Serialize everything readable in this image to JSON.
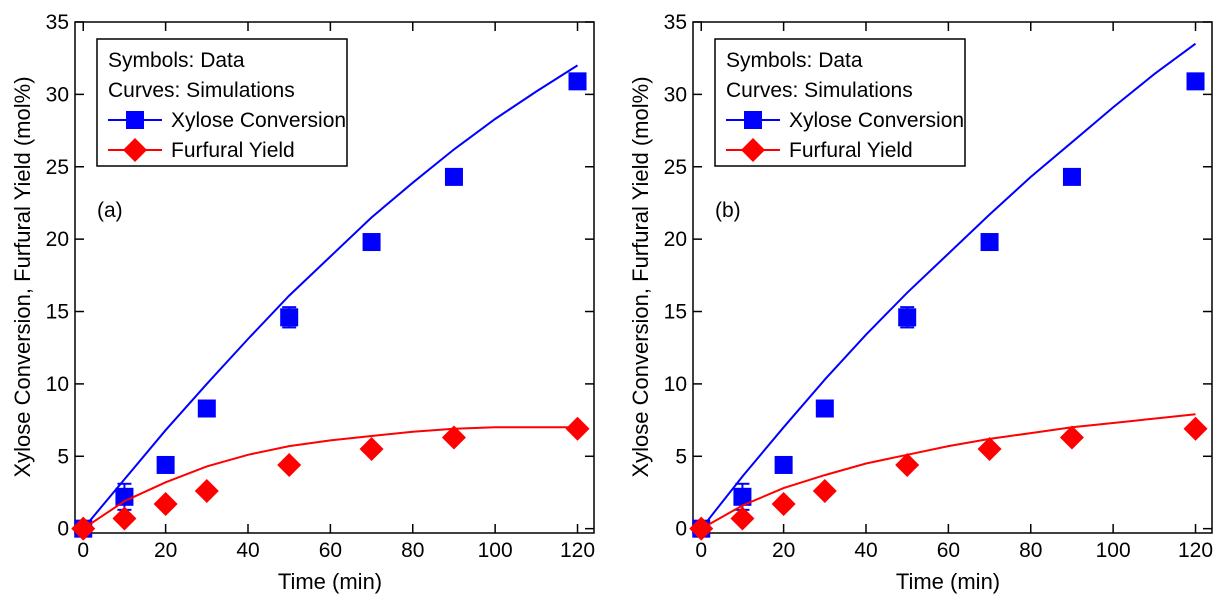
{
  "chart_data": [
    {
      "type": "line",
      "panel_label": "(a)",
      "xlabel": "Time (min)",
      "ylabel": "Xylose Conversion, Furfural Yield (mol%)",
      "xlim": [
        -2,
        124
      ],
      "ylim": [
        -0.3,
        35
      ],
      "x_ticks": [
        0,
        20,
        40,
        60,
        80,
        100,
        120
      ],
      "y_ticks": [
        0,
        5,
        10,
        15,
        20,
        25,
        30,
        35
      ],
      "legend_notes": [
        "Symbols: Data",
        "Curves: Simulations"
      ],
      "legend_position": "top-left",
      "series": [
        {
          "name": "Xylose Conversion",
          "color": "#0000ff",
          "marker": "square",
          "data_x": [
            0,
            10,
            20,
            30,
            50,
            70,
            90,
            120
          ],
          "data_y": [
            0,
            2.2,
            4.4,
            8.3,
            14.6,
            19.8,
            24.3,
            30.9
          ],
          "error": [
            0,
            0.9,
            0,
            0,
            0.7,
            0,
            0,
            0
          ],
          "curve_x": [
            0,
            10,
            20,
            30,
            40,
            50,
            60,
            70,
            80,
            90,
            100,
            110,
            120
          ],
          "curve_y": [
            0,
            3.4,
            6.8,
            10.0,
            13.1,
            16.1,
            18.8,
            21.5,
            23.9,
            26.2,
            28.3,
            30.2,
            32.0
          ]
        },
        {
          "name": "Furfural Yield",
          "color": "#ff0000",
          "marker": "diamond",
          "data_x": [
            0,
            10,
            20,
            30,
            50,
            70,
            90,
            120
          ],
          "data_y": [
            0,
            0.7,
            1.7,
            2.6,
            4.4,
            5.5,
            6.3,
            6.9
          ],
          "error": [
            0,
            0,
            0,
            0,
            0,
            0,
            0,
            0
          ],
          "curve_x": [
            0,
            10,
            20,
            30,
            40,
            50,
            60,
            70,
            80,
            90,
            100,
            110,
            120
          ],
          "curve_y": [
            0,
            1.9,
            3.2,
            4.3,
            5.1,
            5.7,
            6.1,
            6.4,
            6.7,
            6.9,
            7.0,
            7.0,
            7.0
          ]
        }
      ]
    },
    {
      "type": "line",
      "panel_label": "(b)",
      "xlabel": "Time (min)",
      "ylabel": "Xylose Conversion, Furfural Yield (mol%)",
      "xlim": [
        -2,
        124
      ],
      "ylim": [
        -0.3,
        35
      ],
      "x_ticks": [
        0,
        20,
        40,
        60,
        80,
        100,
        120
      ],
      "y_ticks": [
        0,
        5,
        10,
        15,
        20,
        25,
        30,
        35
      ],
      "legend_notes": [
        "Symbols: Data",
        "Curves: Simulations"
      ],
      "legend_position": "top-left",
      "series": [
        {
          "name": "Xylose Conversion",
          "color": "#0000ff",
          "marker": "square",
          "data_x": [
            0,
            10,
            20,
            30,
            50,
            70,
            90,
            120
          ],
          "data_y": [
            0,
            2.2,
            4.4,
            8.3,
            14.6,
            19.8,
            24.3,
            30.9
          ],
          "error": [
            0,
            0.9,
            0,
            0,
            0.7,
            0,
            0,
            0
          ],
          "curve_x": [
            0,
            10,
            20,
            30,
            40,
            50,
            60,
            70,
            80,
            90,
            100,
            110,
            120
          ],
          "curve_y": [
            0,
            3.6,
            7.0,
            10.3,
            13.4,
            16.3,
            19.0,
            21.7,
            24.3,
            26.7,
            29.1,
            31.4,
            33.5
          ]
        },
        {
          "name": "Furfural Yield",
          "color": "#ff0000",
          "marker": "diamond",
          "data_x": [
            0,
            10,
            20,
            30,
            50,
            70,
            90,
            120
          ],
          "data_y": [
            0,
            0.7,
            1.7,
            2.6,
            4.4,
            5.5,
            6.3,
            6.9
          ],
          "error": [
            0,
            0,
            0,
            0,
            0,
            0,
            0,
            0
          ],
          "curve_x": [
            0,
            10,
            20,
            30,
            40,
            50,
            60,
            70,
            80,
            90,
            100,
            110,
            120
          ],
          "curve_y": [
            0,
            1.6,
            2.8,
            3.7,
            4.5,
            5.1,
            5.7,
            6.2,
            6.6,
            7.0,
            7.3,
            7.6,
            7.9
          ]
        }
      ]
    }
  ]
}
